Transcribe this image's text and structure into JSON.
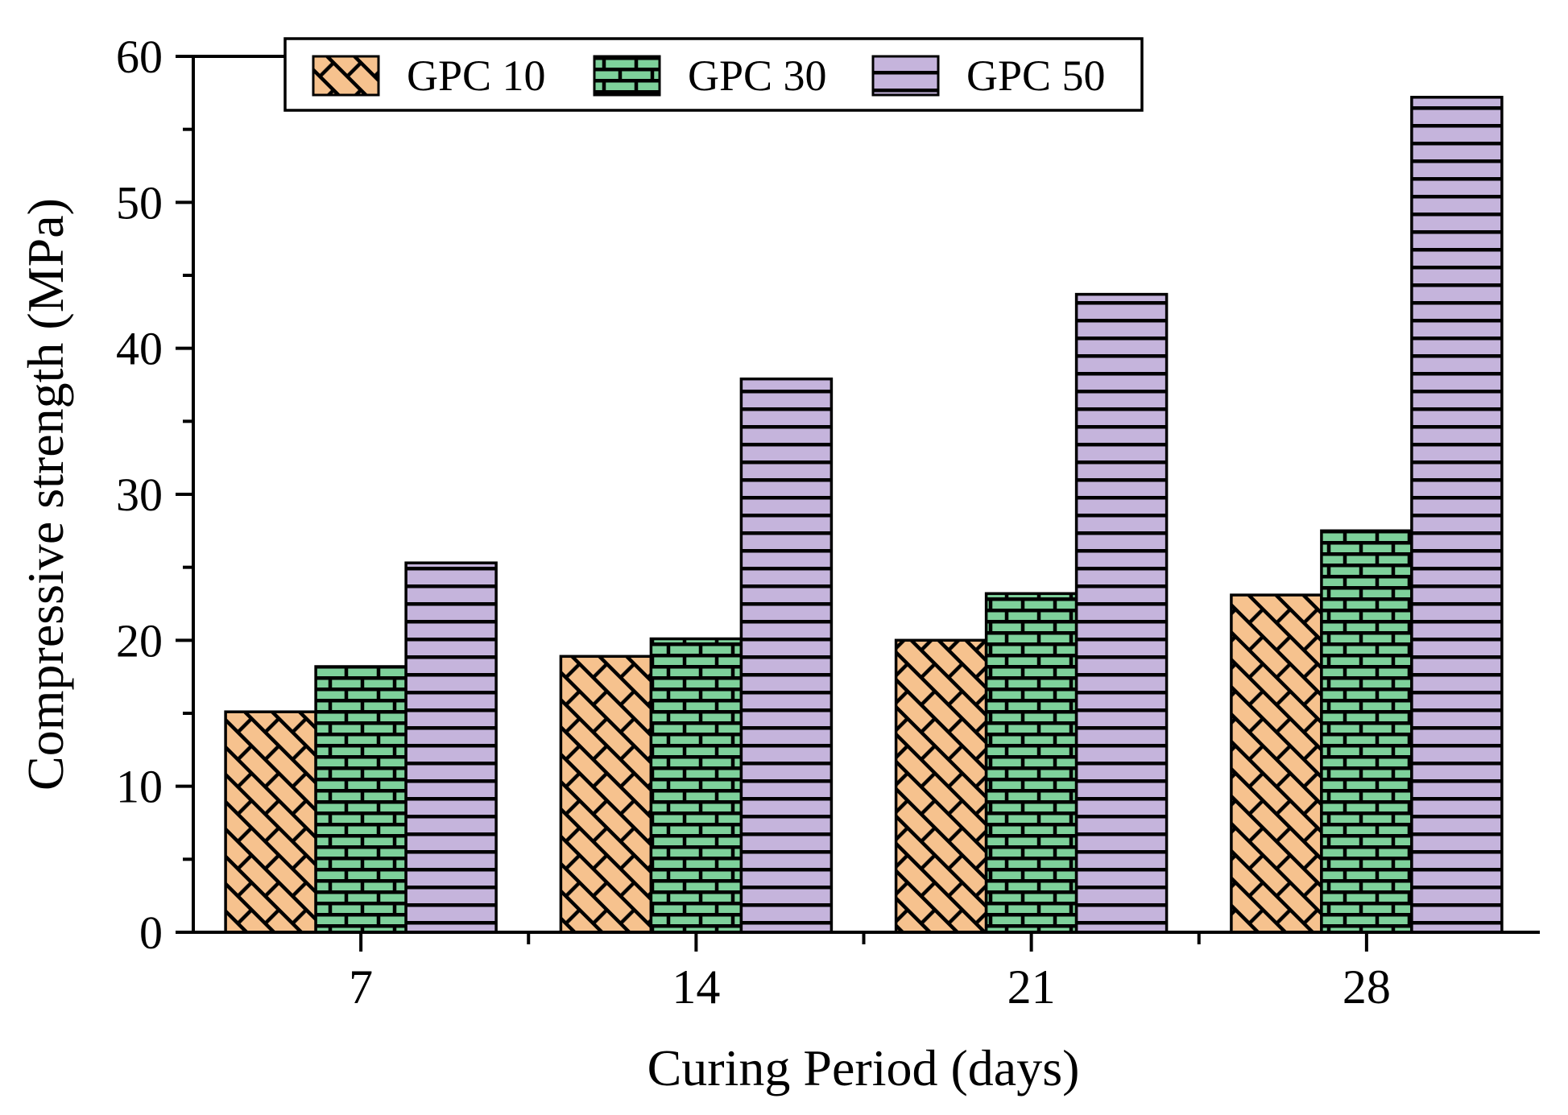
{
  "chart_data": {
    "type": "bar",
    "title": "",
    "xlabel": "Curing Period (days)",
    "ylabel": "Compressive strength (MPa)",
    "categories": [
      "7",
      "14",
      "21",
      "28"
    ],
    "series": [
      {
        "name": "GPC 10",
        "values": [
          15.1,
          18.9,
          20.0,
          23.1
        ],
        "fill": "#F6C28E",
        "pattern": "diagonal-brick"
      },
      {
        "name": "GPC 30",
        "values": [
          18.2,
          20.1,
          23.2,
          27.5
        ],
        "fill": "#7ED19B",
        "pattern": "brick"
      },
      {
        "name": "GPC 50",
        "values": [
          25.3,
          37.9,
          43.7,
          57.2
        ],
        "fill": "#C5B4DC",
        "pattern": "horizontal-lines"
      }
    ],
    "ylim": [
      0,
      60
    ],
    "ytick_step": 10,
    "yminor_step": 5,
    "yticks": [
      "0",
      "10",
      "20",
      "30",
      "40",
      "50",
      "60"
    ],
    "legend_position": "top",
    "grid": false,
    "axis_color": "#000000",
    "background_color": "#FFFFFF",
    "hatch_color": "#000000"
  }
}
